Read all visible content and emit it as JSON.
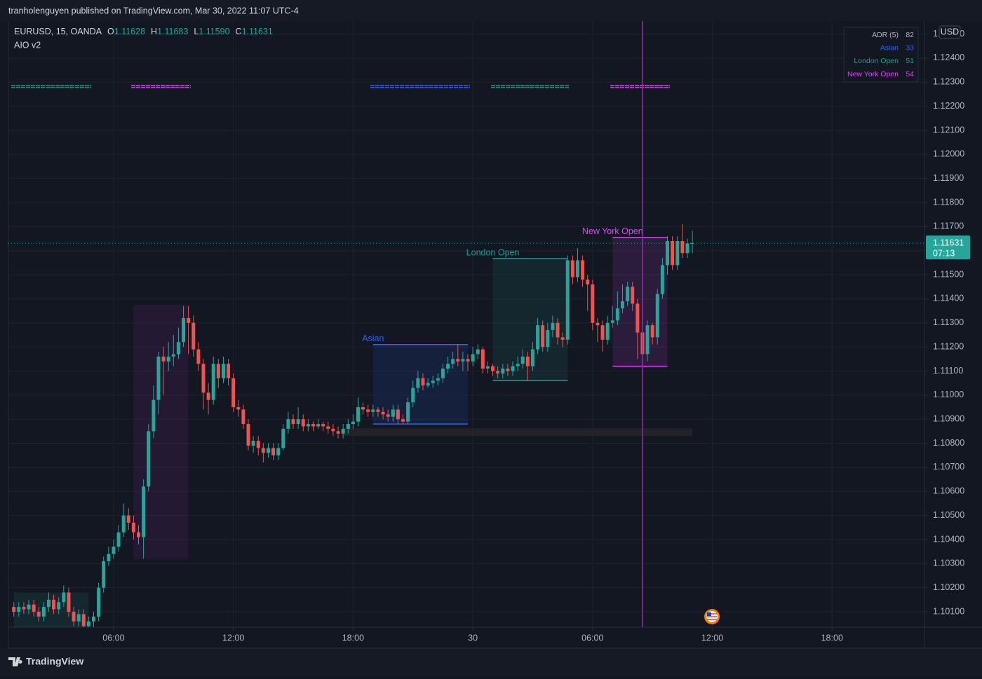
{
  "published": "tranholenguyen published on TradingView.com, Mar 30, 2022 11:07 UTC-4",
  "brand": "TradingView",
  "header": {
    "symbol": "EURUSD, 15, OANDA",
    "fields": [
      {
        "key": "O",
        "value": "1.11628"
      },
      {
        "key": "H",
        "value": "1.11683"
      },
      {
        "key": "L",
        "value": "1.11590"
      },
      {
        "key": "C",
        "value": "1.11631"
      }
    ],
    "indicator": "AIO v2"
  },
  "adr_table": [
    {
      "label": "ADR (5)",
      "value": 82,
      "color": "#b2b5be"
    },
    {
      "label": "Asian",
      "value": 33,
      "color": "#2962ff"
    },
    {
      "label": "London Open",
      "value": 51,
      "color": "#1e9c8c"
    },
    {
      "label": "New York Open",
      "value": 54,
      "color": "#e040fb"
    }
  ],
  "chart_data": {
    "type": "candlestick",
    "currency": "USD",
    "grid": true,
    "up_color": "#26a69a",
    "down_color": "#ef5350",
    "xlim": [
      0.73,
      46.63
    ],
    "xticks": [
      {
        "value": 6,
        "label": "06:00"
      },
      {
        "value": 12,
        "label": "12:00"
      },
      {
        "value": 18,
        "label": "18:00"
      },
      {
        "value": 24,
        "label": "30"
      },
      {
        "value": 30,
        "label": "06:00"
      },
      {
        "value": 36,
        "label": "12:00"
      },
      {
        "value": 42,
        "label": "18:00"
      }
    ],
    "ylim": [
      1.10036,
      1.12554
    ],
    "yticks": [
      {
        "value": 1.101,
        "label": "1.10100"
      },
      {
        "value": 1.102,
        "label": "1.10200"
      },
      {
        "value": 1.103,
        "label": "1.10300"
      },
      {
        "value": 1.104,
        "label": "1.10400"
      },
      {
        "value": 1.105,
        "label": "1.10500"
      },
      {
        "value": 1.106,
        "label": "1.10600"
      },
      {
        "value": 1.107,
        "label": "1.10700"
      },
      {
        "value": 1.108,
        "label": "1.10800"
      },
      {
        "value": 1.109,
        "label": "1.10900"
      },
      {
        "value": 1.11,
        "label": "1.11000"
      },
      {
        "value": 1.111,
        "label": "1.11100"
      },
      {
        "value": 1.112,
        "label": "1.11200"
      },
      {
        "value": 1.113,
        "label": "1.11300"
      },
      {
        "value": 1.114,
        "label": "1.11400"
      },
      {
        "value": 1.115,
        "label": "1.11500"
      },
      {
        "value": 1.116,
        "label": "1.11600"
      },
      {
        "value": 1.117,
        "label": "1.11700"
      },
      {
        "value": 1.118,
        "label": "1.11800"
      },
      {
        "value": 1.119,
        "label": "1.11900"
      },
      {
        "value": 1.12,
        "label": "1.12000"
      },
      {
        "value": 1.121,
        "label": "1.12100"
      },
      {
        "value": 1.122,
        "label": "1.12200"
      },
      {
        "value": 1.123,
        "label": "1.12300"
      },
      {
        "value": 1.124,
        "label": "1.12400"
      },
      {
        "value": 1.125,
        "label": "1.12500"
      }
    ],
    "x": [
      1,
      1.25,
      1.5,
      1.75,
      2,
      2.25,
      2.5,
      2.75,
      3,
      3.25,
      3.5,
      3.75,
      4,
      4.25,
      4.5,
      4.75,
      5,
      5.25,
      5.5,
      5.75,
      6,
      6.25,
      6.5,
      6.75,
      7,
      7.25,
      7.5,
      7.75,
      8,
      8.25,
      8.5,
      8.75,
      9,
      9.25,
      9.5,
      9.75,
      10,
      10.25,
      10.5,
      10.75,
      11,
      11.25,
      11.5,
      11.75,
      12,
      12.25,
      12.5,
      12.75,
      13,
      13.25,
      13.5,
      13.75,
      14,
      14.25,
      14.5,
      14.75,
      15,
      15.25,
      15.5,
      15.75,
      16,
      16.25,
      16.5,
      16.75,
      17,
      17.25,
      17.5,
      17.75,
      18,
      18.25,
      18.5,
      18.75,
      19,
      19.25,
      19.5,
      19.75,
      20,
      20.25,
      20.5,
      20.75,
      21,
      21.25,
      21.5,
      21.75,
      22,
      22.25,
      22.5,
      22.75,
      23,
      23.25,
      23.5,
      23.75,
      24,
      24.25,
      24.5,
      24.75,
      25,
      25.25,
      25.5,
      25.75,
      26,
      26.25,
      26.5,
      26.75,
      27,
      27.25,
      27.5,
      27.75,
      28,
      28.25,
      28.5,
      28.75,
      29,
      29.25,
      29.5,
      29.75,
      30,
      30.25,
      30.5,
      30.75,
      31,
      31.25,
      31.5,
      31.75,
      32,
      32.25,
      32.5,
      32.75,
      33,
      33.25,
      33.5,
      33.75,
      34,
      34.25,
      34.5,
      34.75,
      35
    ],
    "open": [
      1.1012,
      1.101,
      1.1012,
      1.1011,
      1.1013,
      1.101,
      1.1008,
      1.1012,
      1.1015,
      1.1011,
      1.1014,
      1.1018,
      1.101,
      1.1006,
      1.1009,
      1.1004,
      1.1006,
      1.1008,
      1.102,
      1.1031,
      1.1034,
      1.1037,
      1.1043,
      1.105,
      1.1047,
      1.1043,
      1.1041,
      1.1062,
      1.1085,
      1.1098,
      1.1116,
      1.1114,
      1.1116,
      1.1117,
      1.1122,
      1.1132,
      1.113,
      1.1119,
      1.1113,
      1.1101,
      1.1098,
      1.1113,
      1.1107,
      1.1113,
      1.1107,
      1.1095,
      1.1094,
      1.1088,
      1.1079,
      1.1081,
      1.1078,
      1.1076,
      1.1078,
      1.1075,
      1.1078,
      1.1086,
      1.109,
      1.1088,
      1.109,
      1.1087,
      1.1088,
      1.1087,
      1.1088,
      1.1087,
      1.1086,
      1.1085,
      1.1084,
      1.1086,
      1.1088,
      1.1089,
      1.1095,
      1.1094,
      1.1093,
      1.1094,
      1.1093,
      1.1092,
      1.1091,
      1.1094,
      1.109,
      1.1089,
      1.1097,
      1.1103,
      1.1107,
      1.1104,
      1.1105,
      1.1106,
      1.1107,
      1.1111,
      1.1113,
      1.1115,
      1.1114,
      1.1115,
      1.1114,
      1.1117,
      1.1119,
      1.1111,
      1.1112,
      1.111,
      1.1109,
      1.1111,
      1.111,
      1.1112,
      1.1113,
      1.1116,
      1.1112,
      1.1119,
      1.1129,
      1.112,
      1.1127,
      1.113,
      1.1124,
      1.1123,
      1.1156,
      1.1149,
      1.1156,
      1.1148,
      1.1146,
      1.113,
      1.1129,
      1.1123,
      1.113,
      1.1131,
      1.1136,
      1.1139,
      1.1145,
      1.1138,
      1.1126,
      1.1117,
      1.1129,
      1.1124,
      1.1142,
      1.1154,
      1.1164,
      1.1154,
      1.1164,
      1.1159,
      1.11628
    ],
    "high": [
      1.1014,
      1.1014,
      1.1014,
      1.1015,
      1.1015,
      1.1012,
      1.1014,
      1.1018,
      1.1017,
      1.1016,
      1.1021,
      1.102,
      1.1012,
      1.1011,
      1.1011,
      1.1008,
      1.101,
      1.1022,
      1.1033,
      1.1037,
      1.104,
      1.1046,
      1.1055,
      1.1053,
      1.105,
      1.1046,
      1.1065,
      1.1088,
      1.1104,
      1.1118,
      1.112,
      1.1122,
      1.1125,
      1.1128,
      1.1137,
      1.1137,
      1.1133,
      1.1122,
      1.1115,
      1.1105,
      1.1116,
      1.1115,
      1.1116,
      1.1115,
      1.1109,
      1.1098,
      1.1096,
      1.109,
      1.1083,
      1.1083,
      1.108,
      1.108,
      1.108,
      1.108,
      1.1088,
      1.1093,
      1.1092,
      1.1095,
      1.1092,
      1.109,
      1.1089,
      1.109,
      1.1089,
      1.1089,
      1.1088,
      1.1087,
      1.1088,
      1.109,
      1.1092,
      1.1099,
      1.1097,
      1.1096,
      1.1096,
      1.1095,
      1.1095,
      1.1094,
      1.1096,
      1.1096,
      1.1092,
      1.1099,
      1.1106,
      1.111,
      1.1109,
      1.1107,
      1.1108,
      1.1109,
      1.1113,
      1.1116,
      1.1118,
      1.1121,
      1.1118,
      1.1117,
      1.112,
      1.1121,
      1.112,
      1.1114,
      1.1113,
      1.1112,
      1.1113,
      1.1113,
      1.1114,
      1.1116,
      1.1119,
      1.1118,
      1.1122,
      1.1132,
      1.1131,
      1.113,
      1.1133,
      1.1132,
      1.1126,
      1.1158,
      1.1158,
      1.1161,
      1.1158,
      1.115,
      1.1148,
      1.1132,
      1.1131,
      1.1133,
      1.1137,
      1.1143,
      1.1146,
      1.1147,
      1.1147,
      1.114,
      1.1128,
      1.1131,
      1.113,
      1.1144,
      1.1157,
      1.1166,
      1.1166,
      1.1166,
      1.1171,
      1.1165,
      1.11683
    ],
    "low": [
      1.1008,
      1.1008,
      1.1009,
      1.1009,
      1.1008,
      1.1006,
      1.1006,
      1.101,
      1.1009,
      1.1009,
      1.1012,
      1.1008,
      1.1004,
      1.1004,
      1.1002,
      1.1002,
      1.1003,
      1.1006,
      1.1018,
      1.1029,
      1.1032,
      1.1035,
      1.1041,
      1.1044,
      1.104,
      1.1038,
      1.1032,
      1.106,
      1.1082,
      1.1092,
      1.11,
      1.111,
      1.1112,
      1.1115,
      1.112,
      1.1117,
      1.1116,
      1.111,
      1.1094,
      1.1092,
      1.1096,
      1.1103,
      1.1105,
      1.1104,
      1.1093,
      1.1091,
      1.1086,
      1.1077,
      1.1076,
      1.1075,
      1.1072,
      1.1074,
      1.1073,
      1.1073,
      1.1077,
      1.1084,
      1.1086,
      1.1086,
      1.1085,
      1.1085,
      1.1085,
      1.1086,
      1.1085,
      1.1084,
      1.1083,
      1.1082,
      1.1082,
      1.1084,
      1.1086,
      1.1087,
      1.1092,
      1.1091,
      1.1091,
      1.1091,
      1.109,
      1.1089,
      1.1089,
      1.1088,
      1.1088,
      1.1088,
      1.1095,
      1.1101,
      1.1102,
      1.1103,
      1.1103,
      1.1104,
      1.1105,
      1.1109,
      1.1111,
      1.1112,
      1.111,
      1.111,
      1.1112,
      1.1115,
      1.1109,
      1.1109,
      1.1108,
      1.1107,
      1.1107,
      1.1108,
      1.1108,
      1.111,
      1.1111,
      1.1106,
      1.111,
      1.1117,
      1.1118,
      1.1118,
      1.1124,
      1.1121,
      1.112,
      1.1121,
      1.1146,
      1.1147,
      1.1145,
      1.1135,
      1.1127,
      1.1122,
      1.1118,
      1.1121,
      1.1128,
      1.1129,
      1.1134,
      1.1137,
      1.1135,
      1.1115,
      1.1112,
      1.1114,
      1.1121,
      1.1121,
      1.114,
      1.115,
      1.1152,
      1.1152,
      1.1157,
      1.1157,
      1.1159
    ],
    "close": [
      1.101,
      1.1012,
      1.1011,
      1.1013,
      1.101,
      1.1008,
      1.1012,
      1.1015,
      1.1011,
      1.1014,
      1.1018,
      1.101,
      1.1006,
      1.1009,
      1.1004,
      1.1006,
      1.1008,
      1.102,
      1.1031,
      1.1034,
      1.1037,
      1.1043,
      1.105,
      1.1047,
      1.1043,
      1.1041,
      1.1062,
      1.1085,
      1.1098,
      1.1116,
      1.1114,
      1.1116,
      1.1117,
      1.1122,
      1.1132,
      1.113,
      1.1119,
      1.1113,
      1.1101,
      1.1098,
      1.1113,
      1.1107,
      1.1113,
      1.1107,
      1.1095,
      1.1094,
      1.1088,
      1.1079,
      1.1081,
      1.1078,
      1.1076,
      1.1078,
      1.1075,
      1.1078,
      1.1086,
      1.109,
      1.1088,
      1.109,
      1.1087,
      1.1088,
      1.1087,
      1.1088,
      1.1087,
      1.1086,
      1.1085,
      1.1084,
      1.1086,
      1.1088,
      1.1089,
      1.1095,
      1.1094,
      1.1093,
      1.1094,
      1.1093,
      1.1092,
      1.1091,
      1.1094,
      1.109,
      1.1089,
      1.1097,
      1.1103,
      1.1107,
      1.1104,
      1.1105,
      1.1106,
      1.1107,
      1.1111,
      1.1113,
      1.1115,
      1.1114,
      1.1115,
      1.1114,
      1.1117,
      1.1119,
      1.1111,
      1.1112,
      1.111,
      1.1109,
      1.1111,
      1.111,
      1.1112,
      1.1113,
      1.1116,
      1.1112,
      1.1119,
      1.1129,
      1.112,
      1.1127,
      1.113,
      1.1124,
      1.1123,
      1.1156,
      1.1149,
      1.1156,
      1.1148,
      1.1146,
      1.113,
      1.1129,
      1.1123,
      1.113,
      1.1131,
      1.1136,
      1.1139,
      1.1145,
      1.1138,
      1.1126,
      1.1117,
      1.1129,
      1.1124,
      1.1142,
      1.1154,
      1.1164,
      1.1154,
      1.1164,
      1.1159,
      1.1163,
      1.11631
    ],
    "last_price": {
      "price": "1.11631",
      "countdown": "07:13",
      "color": "#26a69a"
    },
    "boxes": [
      {
        "x": [
          1,
          4.75
        ],
        "high": 1.1018,
        "low": 1.1,
        "color": "#26a69a"
      },
      {
        "x": [
          7,
          9.75
        ],
        "high": 1.11375,
        "low": 1.10318,
        "color": "#9c27b0"
      },
      {
        "label": "Asian",
        "x": [
          19,
          23.75
        ],
        "high": 1.1121,
        "low": 1.1088,
        "color": "#2962ff"
      },
      {
        "label": "London Open",
        "x": [
          25,
          28.75
        ],
        "high": 1.11567,
        "low": 1.1106,
        "color": "#1e9c8c"
      },
      {
        "label": "New York Open",
        "x": [
          31,
          33.75
        ],
        "high": 1.11655,
        "low": 1.1112,
        "color": "#e040fb"
      }
    ],
    "zone": {
      "x": [
        17.5,
        35
      ],
      "high": 1.10862,
      "low": 1.1083,
      "color": "#2a2a2a"
    },
    "vline": {
      "x": 32.5,
      "color": "#9c27b0"
    }
  }
}
